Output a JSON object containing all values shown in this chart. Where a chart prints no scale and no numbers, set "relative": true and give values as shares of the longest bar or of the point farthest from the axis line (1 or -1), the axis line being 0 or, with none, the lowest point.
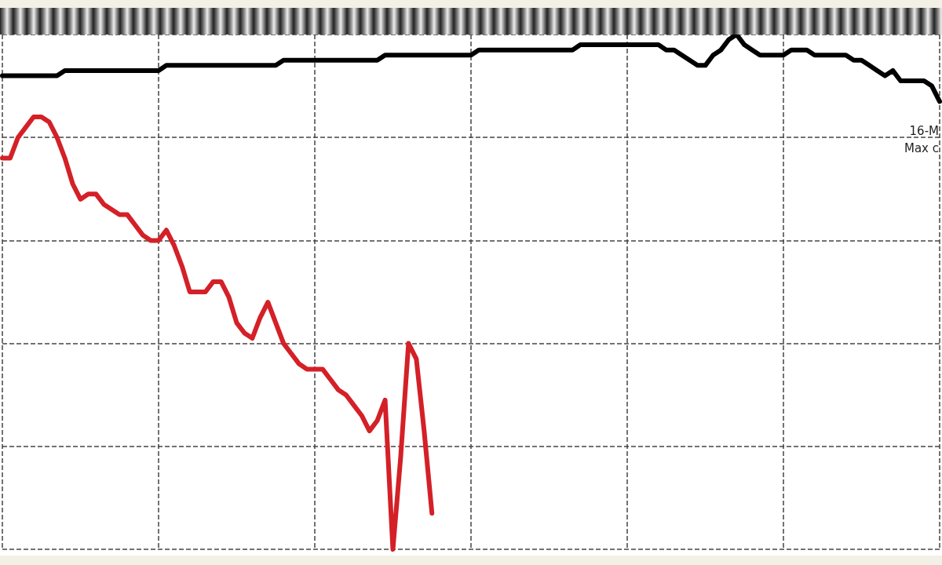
{
  "chart_data": {
    "type": "line",
    "relative": true,
    "grid": true,
    "marker": "none",
    "line_style": "solid",
    "categories": [
      null,
      null,
      null,
      null,
      null,
      null,
      null,
      null,
      null,
      null,
      null,
      null,
      null,
      null,
      null,
      null,
      null,
      null,
      null,
      null,
      null,
      null,
      null,
      null,
      null,
      null,
      null,
      null,
      null,
      null,
      null,
      null,
      null,
      null,
      null,
      null,
      null,
      null,
      null,
      null,
      null,
      null,
      null,
      null,
      null,
      null,
      null,
      null,
      null,
      null,
      null,
      null,
      null,
      null,
      null,
      null,
      null,
      null,
      null,
      null,
      null,
      null,
      null,
      null,
      null,
      null,
      null,
      null,
      null,
      null,
      null,
      null,
      null,
      null,
      null,
      null,
      null,
      null,
      null,
      null,
      null,
      null,
      null,
      null,
      null,
      null,
      null,
      null,
      null,
      null,
      null,
      null,
      null,
      null,
      null,
      null,
      null,
      null,
      null,
      null,
      null,
      null,
      null,
      null,
      null,
      null,
      null,
      null,
      null,
      null,
      null,
      null,
      null,
      null,
      null,
      null,
      null,
      null,
      null,
      null,
      null
    ],
    "series": [
      {
        "color": "#000000",
        "values": [
          0.92,
          0.92,
          0.92,
          0.92,
          0.92,
          0.92,
          0.92,
          0.92,
          0.93,
          0.93,
          0.93,
          0.93,
          0.93,
          0.93,
          0.93,
          0.93,
          0.93,
          0.93,
          0.93,
          0.93,
          0.93,
          0.94,
          0.94,
          0.94,
          0.94,
          0.94,
          0.94,
          0.94,
          0.94,
          0.94,
          0.94,
          0.94,
          0.94,
          0.94,
          0.94,
          0.94,
          0.95,
          0.95,
          0.95,
          0.95,
          0.95,
          0.95,
          0.95,
          0.95,
          0.95,
          0.95,
          0.95,
          0.95,
          0.95,
          0.96,
          0.96,
          0.96,
          0.96,
          0.96,
          0.96,
          0.96,
          0.96,
          0.96,
          0.96,
          0.96,
          0.96,
          0.97,
          0.97,
          0.97,
          0.97,
          0.97,
          0.97,
          0.97,
          0.97,
          0.97,
          0.97,
          0.97,
          0.97,
          0.97,
          0.98,
          0.98,
          0.98,
          0.98,
          0.98,
          0.98,
          0.98,
          0.98,
          0.98,
          0.98,
          0.98,
          0.97,
          0.97,
          0.96,
          0.95,
          0.94,
          0.94,
          0.96,
          0.97,
          0.99,
          1.0,
          0.98,
          0.97,
          0.96,
          0.96,
          0.96,
          0.96,
          0.97,
          0.97,
          0.97,
          0.96,
          0.96,
          0.96,
          0.96,
          0.96,
          0.95,
          0.95,
          0.94,
          0.93,
          0.92,
          0.93,
          0.91,
          0.91,
          0.91,
          0.91,
          0.9,
          0.87
        ]
      },
      {
        "color": "#d42027",
        "values": [
          0.76,
          0.76,
          0.8,
          0.82,
          0.84,
          0.84,
          0.83,
          0.8,
          0.76,
          0.71,
          0.68,
          0.69,
          0.69,
          0.67,
          0.66,
          0.65,
          0.65,
          0.63,
          0.61,
          0.6,
          0.6,
          0.62,
          0.59,
          0.55,
          0.5,
          0.5,
          0.5,
          0.52,
          0.52,
          0.49,
          0.44,
          0.42,
          0.41,
          0.45,
          0.48,
          0.44,
          0.4,
          0.38,
          0.36,
          0.35,
          0.35,
          0.35,
          0.33,
          0.31,
          0.3,
          0.28,
          0.26,
          0.23,
          0.25,
          0.29,
          0.0,
          0.18,
          0.4,
          0.37,
          0.23,
          0.07,
          null,
          null,
          null,
          null,
          null,
          null,
          null,
          null,
          null,
          null,
          null,
          null,
          null,
          null,
          null,
          null,
          null,
          null,
          null,
          null,
          null,
          null,
          null,
          null,
          null,
          null,
          null,
          null,
          null,
          null,
          null,
          null,
          null,
          null,
          null,
          null,
          null,
          null,
          null,
          null,
          null,
          null,
          null,
          null,
          null,
          null,
          null,
          null,
          null,
          null,
          null,
          null,
          null,
          null,
          null,
          null,
          null,
          null,
          null,
          null,
          null,
          null,
          null,
          null,
          null
        ]
      }
    ],
    "annotations": [
      "16-M",
      "Max c"
    ]
  }
}
